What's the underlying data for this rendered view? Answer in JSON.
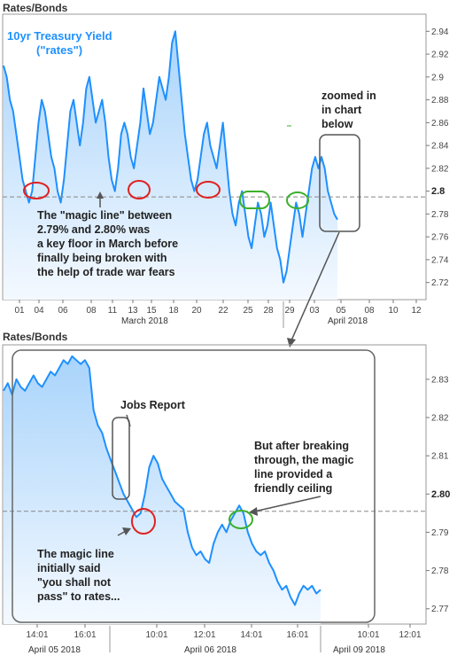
{
  "chart_data": [
    {
      "type": "area",
      "panel_title": "Rates/Bonds",
      "title_lines": [
        "10yr Treasury Yield",
        "(\"rates\")"
      ],
      "y_ticks": [
        2.72,
        2.74,
        2.76,
        2.78,
        2.8,
        2.82,
        2.84,
        2.86,
        2.88,
        2.9,
        2.92,
        2.94
      ],
      "y_tick_labels": [
        "2.72",
        "2.74",
        "2.76",
        "2.78",
        "2.8",
        "2.82",
        "2.84",
        "2.86",
        "2.88",
        "2.9",
        "2.92",
        "2.94"
      ],
      "ylim": [
        2.705,
        2.955
      ],
      "x_tick_labels": [
        "01",
        "04",
        "06",
        "08",
        "11",
        "13",
        "15",
        "18",
        "20",
        "22",
        "25",
        "28",
        "29",
        "03",
        "05",
        "08",
        "10",
        "12"
      ],
      "x_month_labels": [
        "March 2018",
        "April 2018"
      ],
      "reference_line": 2.795,
      "series": [
        {
          "values": [
            2.91,
            2.9,
            2.88,
            2.87,
            2.85,
            2.83,
            2.81,
            2.8,
            2.79,
            2.8,
            2.83,
            2.86,
            2.88,
            2.87,
            2.85,
            2.83,
            2.82,
            2.8,
            2.79,
            2.81,
            2.84,
            2.87,
            2.88,
            2.86,
            2.84,
            2.86,
            2.89,
            2.9,
            2.88,
            2.86,
            2.87,
            2.88,
            2.86,
            2.83,
            2.81,
            2.8,
            2.82,
            2.85,
            2.86,
            2.85,
            2.83,
            2.82,
            2.84,
            2.86,
            2.89,
            2.87,
            2.85,
            2.86,
            2.88,
            2.9,
            2.89,
            2.88,
            2.9,
            2.93,
            2.94,
            2.91,
            2.88,
            2.85,
            2.83,
            2.81,
            2.8,
            2.81,
            2.83,
            2.85,
            2.86,
            2.84,
            2.83,
            2.82,
            2.84,
            2.86,
            2.83,
            2.8,
            2.78,
            2.77,
            2.79,
            2.8,
            2.78,
            2.76,
            2.75,
            2.77,
            2.79,
            2.78,
            2.76,
            2.77,
            2.79,
            2.77,
            2.75,
            2.74,
            2.72,
            2.73,
            2.75,
            2.77,
            2.79,
            2.78,
            2.76,
            2.78,
            2.8,
            2.82,
            2.83,
            2.82,
            2.83,
            2.82,
            2.8,
            2.79,
            2.78,
            2.775
          ]
        }
      ],
      "annotations": [
        "The \"magic line\" between",
        "2.79% and 2.80% was",
        "a key floor in March before",
        "finally being broken with",
        "the help of trade war fears"
      ],
      "zoom_note": [
        "zoomed in",
        "in chart",
        "below"
      ]
    },
    {
      "type": "area",
      "panel_title": "Rates/Bonds",
      "y_ticks": [
        2.77,
        2.78,
        2.79,
        2.8,
        2.81,
        2.82,
        2.83
      ],
      "y_tick_labels": [
        "2.77",
        "2.78",
        "2.79",
        "2.80",
        "2.81",
        "2.82",
        "2.83"
      ],
      "ylim": [
        2.766,
        2.839
      ],
      "x_tick_labels": [
        "14:01",
        "16:01",
        "10:01",
        "12:01",
        "14:01",
        "16:01",
        "10:01",
        "12:01"
      ],
      "x_day_labels": [
        "April 05 2018",
        "April 06 2018",
        "April 09 2018"
      ],
      "reference_line": 2.7955,
      "series": [
        {
          "values": [
            2.827,
            2.829,
            2.826,
            2.83,
            2.828,
            2.827,
            2.829,
            2.831,
            2.829,
            2.828,
            2.83,
            2.832,
            2.831,
            2.833,
            2.835,
            2.834,
            2.836,
            2.835,
            2.834,
            2.835,
            2.833,
            2.822,
            2.818,
            2.816,
            2.812,
            2.809,
            2.806,
            2.803,
            2.8,
            2.798,
            2.796,
            2.794,
            2.795,
            2.8,
            2.807,
            2.81,
            2.808,
            2.804,
            2.802,
            2.8,
            2.798,
            2.797,
            2.796,
            2.79,
            2.786,
            2.784,
            2.785,
            2.783,
            2.782,
            2.787,
            2.79,
            2.792,
            2.79,
            2.793,
            2.795,
            2.797,
            2.795,
            2.79,
            2.787,
            2.785,
            2.784,
            2.785,
            2.782,
            2.78,
            2.777,
            2.775,
            2.776,
            2.773,
            2.771,
            2.774,
            2.776,
            2.775,
            2.776,
            2.774,
            2.775
          ]
        }
      ],
      "annotations": {
        "jobs_report": "Jobs Report",
        "left_note": [
          "The magic line",
          "initially said",
          "\"you shall not",
          "pass\" to rates..."
        ],
        "right_note": [
          "But after breaking",
          "through, the magic",
          "line provided a",
          "friendly ceiling"
        ]
      }
    }
  ],
  "colors": {
    "line": "#1e90ff",
    "fill_top": "#a9d4fb",
    "fill_bottom": "#f2f8ff",
    "red_marker": "#e02020",
    "green_marker": "#3ab02a",
    "callout_border": "#555555"
  }
}
